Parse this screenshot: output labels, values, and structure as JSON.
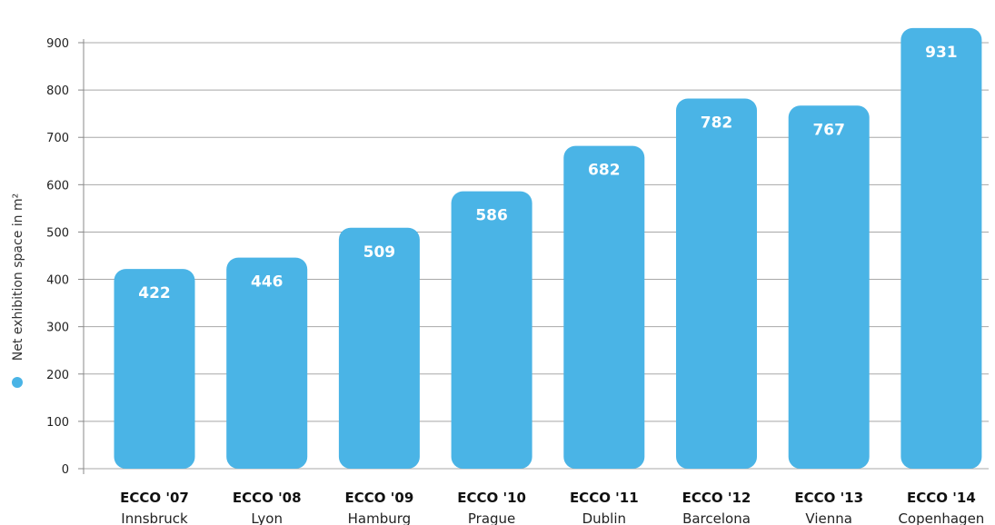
{
  "chart_data": {
    "type": "bar",
    "categories": [
      "ECCO '07",
      "ECCO '08",
      "ECCO '09",
      "ECCO '10",
      "ECCO '11",
      "ECCO '12",
      "ECCO '13",
      "ECCO '14"
    ],
    "category_sublabels": [
      "Innsbruck",
      "Lyon",
      "Hamburg",
      "Prague",
      "Dublin",
      "Barcelona",
      "Vienna",
      "Copenhagen"
    ],
    "values": [
      422,
      446,
      509,
      586,
      682,
      782,
      767,
      931
    ],
    "ylabel": "Net exhibition space in m²",
    "ylim": [
      0,
      900
    ],
    "yticks": [
      0,
      100,
      200,
      300,
      400,
      500,
      600,
      700,
      800,
      900
    ],
    "grid": true,
    "bar_color": "#4ab4e6",
    "legend_marker_color": "#4ab4e6"
  }
}
